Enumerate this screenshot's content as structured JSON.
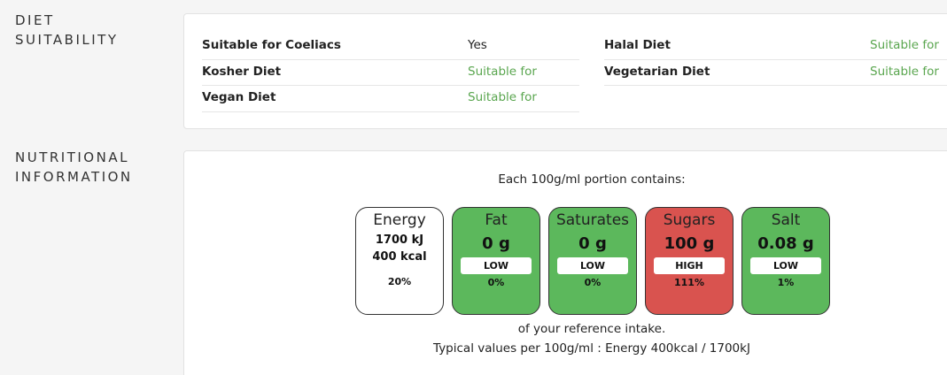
{
  "diet": {
    "label_line1": "DIET",
    "label_line2": "SUITABILITY",
    "left": [
      {
        "name": "Suitable for Coeliacs",
        "value": "Yes"
      },
      {
        "name": "Kosher Diet",
        "value": "Suitable for"
      },
      {
        "name": "Vegan Diet",
        "value": "Suitable for"
      }
    ],
    "right": [
      {
        "name": "Halal Diet",
        "value": "Suitable for"
      },
      {
        "name": "Vegetarian Diet",
        "value": "Suitable for"
      }
    ]
  },
  "nutrition": {
    "label_line1": "NUTRITIONAL",
    "label_line2": "INFORMATION",
    "intro": "Each 100g/ml portion contains:",
    "energy": {
      "title": "Energy",
      "kj": "1700 kJ",
      "kcal": "400 kcal",
      "pct": "20%"
    },
    "boxes": [
      {
        "title": "Fat",
        "amount": "0 g",
        "level": "LOW",
        "pct": "0%",
        "color": "#5cb85c"
      },
      {
        "title": "Saturates",
        "amount": "0 g",
        "level": "LOW",
        "pct": "0%",
        "color": "#5cb85c"
      },
      {
        "title": "Sugars",
        "amount": "100 g",
        "level": "HIGH",
        "pct": "111%",
        "color": "#d9534f"
      },
      {
        "title": "Salt",
        "amount": "0.08 g",
        "level": "LOW",
        "pct": "1%",
        "color": "#5cb85c"
      }
    ],
    "reference": "of your reference intake.",
    "typical": "Typical values per 100g/ml : Energy 400kcal / 1700kJ"
  }
}
